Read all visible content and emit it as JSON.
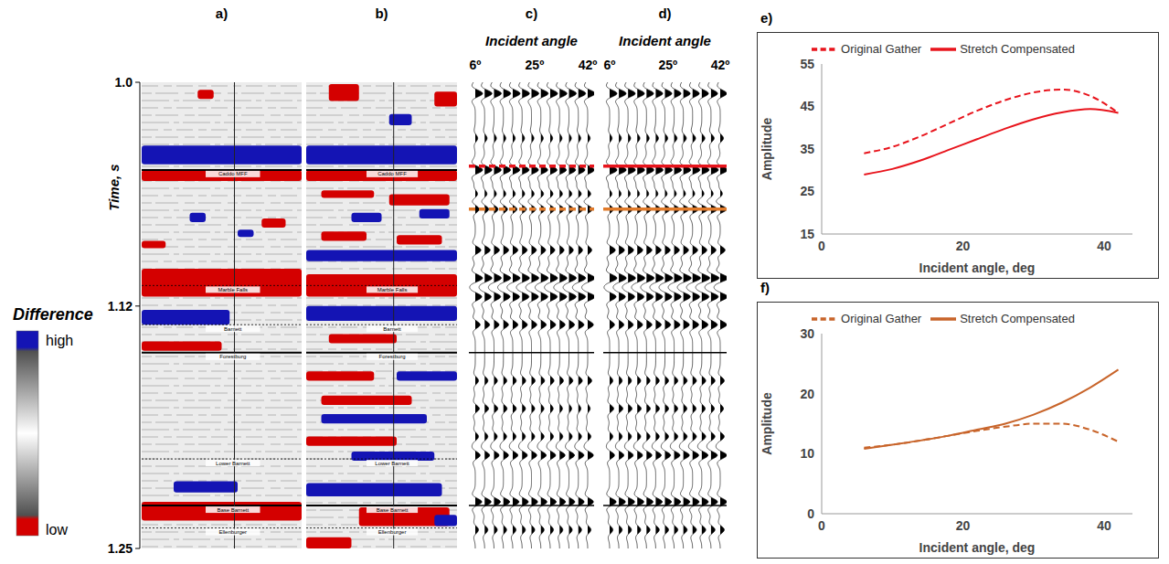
{
  "seismic": {
    "time_label": "Time, s",
    "time_lim": [
      1,
      1.25
    ],
    "time_ticks": [
      {
        "value": 1,
        "label": "1.0"
      },
      1.12,
      1.25
    ],
    "colorbar": {
      "title": "Difference",
      "labels": [
        "high",
        "low"
      ],
      "colors": [
        "#1414b4",
        "#d40000"
      ]
    },
    "horizons": [
      {
        "name": "Caddo MFF",
        "t": 1.047,
        "line_style": "solid"
      },
      {
        "name": "Marble Falls",
        "t": 1.109,
        "line_style": "dotted"
      },
      {
        "name": "Barnett",
        "t": 1.13,
        "line_style": "dotted"
      },
      {
        "name": "Forestburg",
        "t": 1.145,
        "line_style": "solid"
      },
      {
        "name": "Lower Barnett",
        "t": 1.202,
        "line_style": "dotted"
      },
      {
        "name": "Base Barnett",
        "t": 1.227,
        "line_style": "solid"
      },
      {
        "name": "Ellenburger",
        "t": 1.239,
        "line_style": "dotted"
      }
    ],
    "gather_title": "Incident angle",
    "angle_lim": [
      6,
      42
    ],
    "angle_ticks": [
      {
        "value": 6,
        "label": "6º"
      },
      {
        "value": 25,
        "label": "25º"
      },
      {
        "value": 42,
        "label": "42º"
      }
    ],
    "trace_angles": [
      6,
      9,
      12,
      15,
      18,
      21,
      24,
      27,
      30,
      33,
      36,
      39,
      42
    ]
  },
  "panels": [
    {
      "letter": "a)",
      "type": "difference",
      "events": [
        {
          "t0": 1.004,
          "t1": 1.009,
          "x0": 0.35,
          "x1": 0.45,
          "level": "low"
        },
        {
          "t0": 1.034,
          "t1": 1.044,
          "x0": 0,
          "x1": 1,
          "level": "high"
        },
        {
          "t0": 1.047,
          "t1": 1.053,
          "x0": 0,
          "x1": 1,
          "level": "low"
        },
        {
          "t0": 1.07,
          "t1": 1.075,
          "x0": 0.3,
          "x1": 0.4,
          "level": "high"
        },
        {
          "t0": 1.073,
          "t1": 1.078,
          "x0": 0.75,
          "x1": 0.9,
          "level": "low"
        },
        {
          "t0": 1.079,
          "t1": 1.083,
          "x0": 0.6,
          "x1": 0.7,
          "level": "high"
        },
        {
          "t0": 1.085,
          "t1": 1.089,
          "x0": 0,
          "x1": 0.15,
          "level": "low"
        },
        {
          "t0": 1.1,
          "t1": 1.115,
          "x0": 0,
          "x1": 1,
          "level": "low"
        },
        {
          "t0": 1.122,
          "t1": 1.13,
          "x0": 0,
          "x1": 0.55,
          "level": "high"
        },
        {
          "t0": 1.139,
          "t1": 1.144,
          "x0": 0,
          "x1": 0.5,
          "level": "low"
        },
        {
          "t0": 1.214,
          "t1": 1.22,
          "x0": 0.2,
          "x1": 0.6,
          "level": "high"
        },
        {
          "t0": 1.225,
          "t1": 1.235,
          "x0": 0,
          "x1": 1,
          "level": "low"
        }
      ]
    },
    {
      "letter": "b)",
      "type": "difference",
      "events": [
        {
          "t0": 1.001,
          "t1": 1.01,
          "x0": 0.15,
          "x1": 0.35,
          "level": "low"
        },
        {
          "t0": 1.005,
          "t1": 1.013,
          "x0": 0.85,
          "x1": 1,
          "level": "low"
        },
        {
          "t0": 1.017,
          "t1": 1.023,
          "x0": 0.55,
          "x1": 0.7,
          "level": "high"
        },
        {
          "t0": 1.034,
          "t1": 1.044,
          "x0": 0,
          "x1": 1,
          "level": "high"
        },
        {
          "t0": 1.047,
          "t1": 1.053,
          "x0": 0,
          "x1": 1,
          "level": "low"
        },
        {
          "t0": 1.058,
          "t1": 1.062,
          "x0": 0.1,
          "x1": 0.45,
          "level": "low"
        },
        {
          "t0": 1.06,
          "t1": 1.066,
          "x0": 0.55,
          "x1": 0.95,
          "level": "low"
        },
        {
          "t0": 1.07,
          "t1": 1.075,
          "x0": 0.3,
          "x1": 0.5,
          "level": "high"
        },
        {
          "t0": 1.068,
          "t1": 1.073,
          "x0": 0.75,
          "x1": 0.95,
          "level": "high"
        },
        {
          "t0": 1.08,
          "t1": 1.085,
          "x0": 0.1,
          "x1": 0.4,
          "level": "low"
        },
        {
          "t0": 1.082,
          "t1": 1.087,
          "x0": 0.6,
          "x1": 0.9,
          "level": "low"
        },
        {
          "t0": 1.09,
          "t1": 1.096,
          "x0": 0,
          "x1": 1,
          "level": "high"
        },
        {
          "t0": 1.103,
          "t1": 1.115,
          "x0": 0,
          "x1": 1,
          "level": "low"
        },
        {
          "t0": 1.12,
          "t1": 1.128,
          "x0": 0,
          "x1": 1,
          "level": "high"
        },
        {
          "t0": 1.135,
          "t1": 1.14,
          "x0": 0.15,
          "x1": 0.6,
          "level": "low"
        },
        {
          "t0": 1.155,
          "t1": 1.16,
          "x0": 0,
          "x1": 0.45,
          "level": "low"
        },
        {
          "t0": 1.155,
          "t1": 1.16,
          "x0": 0.6,
          "x1": 1,
          "level": "high"
        },
        {
          "t0": 1.168,
          "t1": 1.173,
          "x0": 0.1,
          "x1": 0.7,
          "level": "low"
        },
        {
          "t0": 1.178,
          "t1": 1.183,
          "x0": 0.1,
          "x1": 0.8,
          "level": "high"
        },
        {
          "t0": 1.19,
          "t1": 1.195,
          "x0": 0,
          "x1": 0.6,
          "level": "low"
        },
        {
          "t0": 1.198,
          "t1": 1.203,
          "x0": 0.3,
          "x1": 0.85,
          "level": "high"
        },
        {
          "t0": 1.215,
          "t1": 1.222,
          "x0": 0,
          "x1": 0.9,
          "level": "high"
        },
        {
          "t0": 1.228,
          "t1": 1.238,
          "x0": 0.35,
          "x1": 0.95,
          "level": "low"
        },
        {
          "t0": 1.232,
          "t1": 1.238,
          "x0": 0.85,
          "x1": 1,
          "level": "high"
        },
        {
          "t0": 1.244,
          "t1": 1.25,
          "x0": 0,
          "x1": 0.3,
          "level": "low"
        }
      ]
    },
    {
      "letter": "c)",
      "type": "gather",
      "events": [
        {
          "t": 1.006,
          "near": 0.9,
          "far": 0.9
        },
        {
          "t": 1.03,
          "near": 0.3,
          "far": 0.3
        },
        {
          "t": 1.047,
          "near": 0.9,
          "far": 0.8
        },
        {
          "t": 1.06,
          "near": 0.3,
          "far": 0.4
        },
        {
          "t": 1.068,
          "near": 0.5,
          "far": 0.6
        },
        {
          "t": 1.09,
          "near": 0.7,
          "far": 0.5
        },
        {
          "t": 1.105,
          "near": 0.9,
          "far": 0.9
        },
        {
          "t": 1.115,
          "near": 0.8,
          "far": 0.9
        },
        {
          "t": 1.13,
          "near": 0.6,
          "far": 0.7
        },
        {
          "t": 1.16,
          "near": 0.4,
          "far": 0.5
        },
        {
          "t": 1.175,
          "near": 0.5,
          "far": 0.3
        },
        {
          "t": 1.19,
          "near": 0.4,
          "far": 0.4
        },
        {
          "t": 1.2,
          "near": 0.6,
          "far": 0.7
        },
        {
          "t": 1.225,
          "near": 0.8,
          "far": 0.7
        },
        {
          "t": 1.24,
          "near": 0.4,
          "far": 0.4
        }
      ],
      "markers": [
        {
          "t": 1.045,
          "color": "#e8141c",
          "line_style": "dashed"
        },
        {
          "t": 1.068,
          "color": "#e07a2a",
          "line_style": "dashed"
        },
        {
          "t": 1.145,
          "color": "#000000",
          "line_style": "solid"
        },
        {
          "t": 1.227,
          "color": "#000000",
          "line_style": "solid"
        }
      ]
    },
    {
      "letter": "d)",
      "type": "gather",
      "events": [
        {
          "t": 1.006,
          "near": 0.9,
          "far": 0.8
        },
        {
          "t": 1.03,
          "near": 0.3,
          "far": 0.4
        },
        {
          "t": 1.047,
          "near": 0.9,
          "far": 0.9
        },
        {
          "t": 1.06,
          "near": 0.3,
          "far": 0.3
        },
        {
          "t": 1.068,
          "near": 0.5,
          "far": 0.8
        },
        {
          "t": 1.09,
          "near": 0.7,
          "far": 0.6
        },
        {
          "t": 1.105,
          "near": 0.9,
          "far": 1
        },
        {
          "t": 1.115,
          "near": 0.8,
          "far": 0.9
        },
        {
          "t": 1.13,
          "near": 0.6,
          "far": 0.8
        },
        {
          "t": 1.16,
          "near": 0.4,
          "far": 0.5
        },
        {
          "t": 1.175,
          "near": 0.5,
          "far": 0.4
        },
        {
          "t": 1.19,
          "near": 0.4,
          "far": 0.5
        },
        {
          "t": 1.2,
          "near": 0.6,
          "far": 0.8
        },
        {
          "t": 1.225,
          "near": 0.8,
          "far": 0.8
        },
        {
          "t": 1.24,
          "near": 0.4,
          "far": 0.5
        }
      ],
      "markers": [
        {
          "t": 1.045,
          "color": "#e8141c",
          "line_style": "solid"
        },
        {
          "t": 1.068,
          "color": "#e07a2a",
          "line_style": "solid"
        },
        {
          "t": 1.145,
          "color": "#000000",
          "line_style": "solid"
        },
        {
          "t": 1.227,
          "color": "#000000",
          "line_style": "solid"
        }
      ]
    }
  ],
  "chart_data": [
    {
      "panel": "e)",
      "type": "line",
      "x_label": "Incident angle, deg",
      "y_label": "Amplitude",
      "x": [
        6,
        10,
        14,
        18,
        22,
        26,
        30,
        34,
        38,
        42
      ],
      "xlim": [
        0,
        44
      ],
      "xticks": [
        0,
        20,
        40
      ],
      "ylim": [
        15,
        55
      ],
      "yticks": [
        15,
        25,
        35,
        45,
        55
      ],
      "grid": false,
      "legend": "top",
      "series": [
        {
          "name": "Original Gather",
          "color": "#e8141c",
          "line_style": "dashed",
          "values": [
            34,
            35.5,
            38,
            41,
            44,
            46.5,
            48.3,
            49,
            47.5,
            43.5
          ]
        },
        {
          "name": "Stretch Compensated",
          "color": "#e8141c",
          "line_style": "solid",
          "values": [
            29,
            30.3,
            32.3,
            34.8,
            37.3,
            39.8,
            42,
            43.6,
            44.4,
            43.5
          ]
        }
      ]
    },
    {
      "panel": "f)",
      "type": "line",
      "x_label": "Incident angle, deg",
      "y_label": "Amplitude",
      "x": [
        6,
        10,
        14,
        18,
        22,
        26,
        30,
        34,
        38,
        42
      ],
      "xlim": [
        0,
        44
      ],
      "xticks": [
        0,
        20,
        40
      ],
      "ylim": [
        0,
        30
      ],
      "yticks": [
        0,
        10,
        20,
        30
      ],
      "grid": false,
      "legend": "top",
      "series": [
        {
          "name": "Original Gather",
          "color": "#c8642a",
          "line_style": "dashed",
          "values": [
            11,
            11.5,
            12.2,
            13,
            13.8,
            14.5,
            15,
            15,
            14,
            12
          ]
        },
        {
          "name": "Stretch Compensated",
          "color": "#c8642a",
          "line_style": "solid",
          "values": [
            10.8,
            11.5,
            12.2,
            13,
            14,
            15,
            16.5,
            18.5,
            21,
            24
          ]
        }
      ]
    }
  ]
}
